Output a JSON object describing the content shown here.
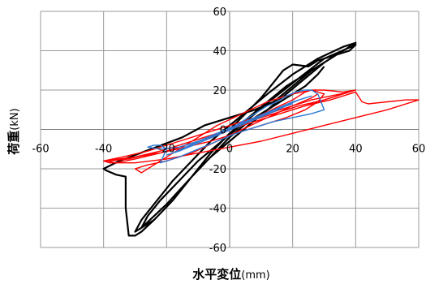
{
  "chart_data": {
    "type": "line",
    "title": "",
    "xlabel": {
      "bold": "水平変位",
      "unit": "(mm)"
    },
    "ylabel": {
      "bold": "荷重",
      "unit": "(kN)"
    },
    "xlim": [
      -60,
      60
    ],
    "ylim": [
      -60,
      60
    ],
    "x_ticks": [
      -60,
      -40,
      -20,
      0,
      20,
      40,
      60
    ],
    "y_ticks": [
      -60,
      -40,
      -20,
      0,
      20,
      40,
      60
    ],
    "grid": true,
    "legend": "none",
    "series": [
      {
        "color": "#000000",
        "points": [
          [
            0,
            0
          ],
          [
            5,
            8
          ],
          [
            10,
            16
          ],
          [
            14,
            24
          ],
          [
            17,
            30
          ],
          [
            20,
            33
          ],
          [
            25,
            32
          ],
          [
            28,
            35
          ],
          [
            30,
            36
          ],
          [
            34,
            38
          ],
          [
            38,
            42
          ],
          [
            40,
            44
          ],
          [
            36,
            40
          ],
          [
            30,
            34
          ],
          [
            24,
            26
          ],
          [
            18,
            18
          ],
          [
            12,
            10
          ],
          [
            6,
            2
          ],
          [
            0,
            -6
          ],
          [
            -6,
            -14
          ],
          [
            -12,
            -24
          ],
          [
            -18,
            -36
          ],
          [
            -24,
            -46
          ],
          [
            -28,
            -52
          ],
          [
            -30,
            -54
          ],
          [
            -32,
            -54
          ],
          [
            -33,
            -40
          ],
          [
            -33,
            -24
          ],
          [
            -36,
            -23
          ],
          [
            -39,
            -21
          ],
          [
            -40,
            -20
          ],
          [
            -35,
            -16
          ],
          [
            -25,
            -10
          ],
          [
            -15,
            -4
          ],
          [
            -8,
            2
          ],
          [
            0,
            6
          ],
          [
            8,
            10
          ],
          [
            14,
            14
          ],
          [
            20,
            22
          ],
          [
            26,
            30
          ],
          [
            32,
            36
          ],
          [
            36,
            40
          ],
          [
            40,
            44
          ],
          [
            36,
            42
          ],
          [
            28,
            36
          ],
          [
            20,
            28
          ],
          [
            12,
            18
          ],
          [
            6,
            10
          ],
          [
            0,
            2
          ],
          [
            -6,
            -6
          ],
          [
            -12,
            -16
          ],
          [
            -18,
            -26
          ],
          [
            -24,
            -38
          ],
          [
            -28,
            -46
          ],
          [
            -30,
            -52
          ],
          [
            -24,
            -46
          ],
          [
            -18,
            -36
          ],
          [
            -12,
            -24
          ],
          [
            -6,
            -12
          ],
          [
            0,
            -2
          ],
          [
            6,
            6
          ],
          [
            12,
            14
          ],
          [
            18,
            22
          ],
          [
            24,
            28
          ],
          [
            30,
            34
          ],
          [
            34,
            38
          ],
          [
            38,
            40
          ],
          [
            40,
            43
          ],
          [
            30,
            36
          ],
          [
            22,
            26
          ],
          [
            14,
            16
          ],
          [
            8,
            8
          ],
          [
            2,
            0
          ],
          [
            -4,
            -8
          ],
          [
            -10,
            -16
          ],
          [
            -16,
            -26
          ],
          [
            -22,
            -36
          ],
          [
            -26,
            -44
          ],
          [
            -28,
            -50
          ],
          [
            -20,
            -38
          ],
          [
            -12,
            -24
          ],
          [
            -6,
            -14
          ],
          [
            0,
            -4
          ],
          [
            6,
            4
          ],
          [
            12,
            10
          ],
          [
            18,
            16
          ],
          [
            24,
            22
          ],
          [
            28,
            28
          ],
          [
            30,
            32
          ]
        ]
      },
      {
        "color": "#ff0000",
        "points": [
          [
            0,
            0
          ],
          [
            4,
            3
          ],
          [
            8,
            6
          ],
          [
            12,
            9
          ],
          [
            16,
            12
          ],
          [
            20,
            15
          ],
          [
            22,
            17
          ],
          [
            24,
            19
          ],
          [
            26,
            20
          ],
          [
            30,
            20
          ],
          [
            36,
            19
          ],
          [
            40,
            20
          ],
          [
            36,
            18
          ],
          [
            30,
            15
          ],
          [
            22,
            12
          ],
          [
            14,
            8
          ],
          [
            6,
            4
          ],
          [
            0,
            0
          ],
          [
            -6,
            -4
          ],
          [
            -14,
            -8
          ],
          [
            -22,
            -12
          ],
          [
            -30,
            -15
          ],
          [
            -36,
            -17
          ],
          [
            -40,
            -16
          ],
          [
            -34,
            -14
          ],
          [
            -26,
            -11
          ],
          [
            -18,
            -7
          ],
          [
            -10,
            -3
          ],
          [
            -2,
            1
          ],
          [
            6,
            5
          ],
          [
            14,
            9
          ],
          [
            20,
            12
          ],
          [
            26,
            15
          ],
          [
            32,
            17
          ],
          [
            38,
            19
          ],
          [
            40,
            20
          ],
          [
            34,
            17
          ],
          [
            26,
            13
          ],
          [
            18,
            9
          ],
          [
            10,
            5
          ],
          [
            2,
            1
          ],
          [
            -6,
            -3
          ],
          [
            -14,
            -7
          ],
          [
            -22,
            -11
          ],
          [
            -30,
            -14
          ],
          [
            -38,
            -16
          ],
          [
            -32,
            -15
          ],
          [
            -24,
            -12
          ],
          [
            -16,
            -8
          ],
          [
            -8,
            -4
          ],
          [
            0,
            0
          ],
          [
            8,
            4
          ],
          [
            16,
            8
          ],
          [
            24,
            12
          ],
          [
            32,
            15
          ],
          [
            40,
            19
          ],
          [
            42,
            14
          ],
          [
            44,
            13
          ],
          [
            50,
            14
          ],
          [
            56,
            15
          ],
          [
            60,
            15
          ],
          [
            50,
            10
          ],
          [
            40,
            6
          ],
          [
            30,
            2
          ],
          [
            20,
            -2
          ],
          [
            10,
            -6
          ],
          [
            0,
            -9
          ],
          [
            -10,
            -12
          ],
          [
            -20,
            -15
          ],
          [
            -30,
            -17
          ],
          [
            -38,
            -17
          ],
          [
            -40,
            -16
          ],
          [
            -30,
            -14
          ],
          [
            -22,
            -12
          ],
          [
            -14,
            -9
          ],
          [
            -6,
            -6
          ],
          [
            2,
            -2
          ],
          [
            10,
            2
          ],
          [
            18,
            6
          ],
          [
            24,
            10
          ],
          [
            28,
            14
          ],
          [
            30,
            18
          ],
          [
            26,
            20
          ],
          [
            20,
            18
          ],
          [
            12,
            14
          ],
          [
            4,
            8
          ],
          [
            -4,
            2
          ],
          [
            -10,
            -4
          ],
          [
            -16,
            -10
          ],
          [
            -22,
            -16
          ],
          [
            -28,
            -22
          ],
          [
            -30,
            -20
          ],
          [
            -26,
            -18
          ],
          [
            -20,
            -16
          ],
          [
            -12,
            -12
          ],
          [
            -4,
            -6
          ],
          [
            4,
            0
          ],
          [
            12,
            6
          ],
          [
            20,
            12
          ],
          [
            26,
            16
          ],
          [
            28,
            18
          ]
        ]
      },
      {
        "color": "#2b7bd6",
        "points": [
          [
            0,
            0
          ],
          [
            3,
            3
          ],
          [
            6,
            6
          ],
          [
            9,
            9
          ],
          [
            12,
            12
          ],
          [
            15,
            14
          ],
          [
            18,
            17
          ],
          [
            21,
            19
          ],
          [
            24,
            20
          ],
          [
            26,
            20
          ],
          [
            28,
            18
          ],
          [
            30,
            10
          ],
          [
            26,
            8
          ],
          [
            20,
            6
          ],
          [
            14,
            4
          ],
          [
            8,
            1
          ],
          [
            2,
            -2
          ],
          [
            -4,
            -6
          ],
          [
            -10,
            -10
          ],
          [
            -16,
            -14
          ],
          [
            -20,
            -16
          ],
          [
            -22,
            -17
          ],
          [
            -20,
            -10
          ],
          [
            -22,
            -8
          ],
          [
            -24,
            -8
          ],
          [
            -26,
            -9
          ],
          [
            -22,
            -10
          ],
          [
            -16,
            -9
          ],
          [
            -10,
            -6
          ],
          [
            -4,
            -2
          ],
          [
            2,
            2
          ],
          [
            8,
            6
          ],
          [
            14,
            10
          ],
          [
            20,
            14
          ],
          [
            24,
            16
          ],
          [
            26,
            17
          ],
          [
            22,
            15
          ],
          [
            16,
            11
          ],
          [
            10,
            7
          ],
          [
            4,
            3
          ],
          [
            -2,
            -1
          ],
          [
            -8,
            -5
          ],
          [
            -14,
            -9
          ],
          [
            -18,
            -12
          ],
          [
            -20,
            -13
          ],
          [
            -16,
            -11
          ],
          [
            -10,
            -7
          ],
          [
            -4,
            -3
          ],
          [
            2,
            1
          ],
          [
            8,
            5
          ],
          [
            14,
            9
          ],
          [
            18,
            12
          ],
          [
            20,
            13
          ]
        ]
      }
    ]
  }
}
